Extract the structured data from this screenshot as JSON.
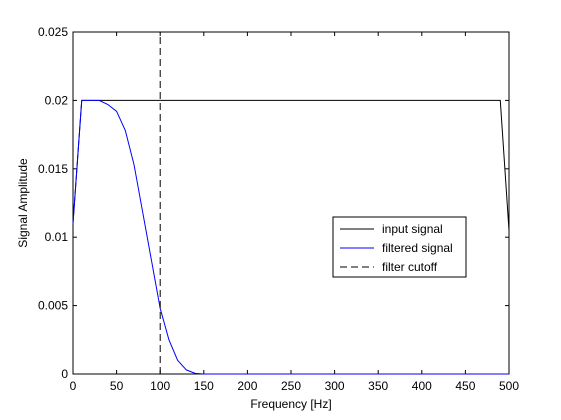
{
  "chart_data": {
    "type": "line",
    "xlabel": "Frequency [Hz]",
    "ylabel": "Signal Amplitude",
    "xlim": [
      0,
      500
    ],
    "ylim": [
      0,
      0.025
    ],
    "xticks": [
      "0",
      "50",
      "100",
      "150",
      "200",
      "250",
      "300",
      "350",
      "400",
      "450",
      "500"
    ],
    "yticks": [
      "0",
      "0.005",
      "0.01",
      "0.015",
      "0.02",
      "0.025"
    ],
    "grid": false,
    "legend_position": "center-right",
    "series": [
      {
        "name": "input signal",
        "color": "#000000",
        "style": "solid",
        "x": [
          0,
          10,
          490,
          500
        ],
        "y": [
          0.011,
          0.02,
          0.02,
          0.0105
        ]
      },
      {
        "name": "filtered signal",
        "color": "#0000ff",
        "style": "solid",
        "x": [
          0,
          10,
          20,
          30,
          40,
          50,
          60,
          70,
          80,
          90,
          100,
          110,
          120,
          130,
          140,
          150,
          200,
          250,
          300,
          350,
          400,
          450,
          500
        ],
        "y": [
          0.011,
          0.02,
          0.02,
          0.02,
          0.0197,
          0.0192,
          0.0178,
          0.0153,
          0.0118,
          0.0083,
          0.0048,
          0.0025,
          0.001,
          0.0003,
          5e-05,
          0,
          0,
          0,
          0,
          0,
          0,
          0,
          0
        ]
      },
      {
        "name": "filter cutoff",
        "color": "#000000",
        "style": "dashed",
        "x": [
          100,
          100
        ],
        "y": [
          0,
          0.025
        ]
      }
    ]
  }
}
